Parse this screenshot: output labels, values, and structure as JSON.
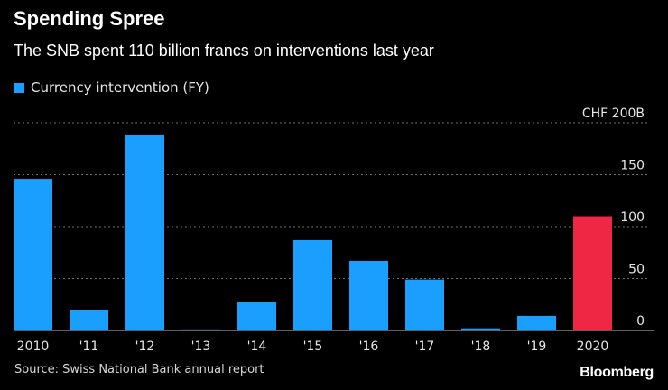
{
  "header": {
    "title": "Spending Spree",
    "subtitle": "The SNB spent 110 billion francs on interventions last year"
  },
  "legend": {
    "label": "Currency intervention (FY)",
    "color": "#1a9fff"
  },
  "footer": {
    "source": "Source: Swiss National Bank annual report",
    "brand": "Bloomberg"
  },
  "colors": {
    "bar": "#1a9fff",
    "highlight": "#ef2745",
    "grid": "#6e6e6e",
    "axis": "#bfbfbf",
    "text": "#e6e6e6"
  },
  "chart_data": {
    "type": "bar",
    "categories": [
      "2010",
      "'11",
      "'12",
      "'13",
      "'14",
      "'15",
      "'16",
      "'17",
      "'18",
      "'19",
      "2020"
    ],
    "values": [
      146,
      20,
      188,
      1,
      27,
      87,
      67,
      49,
      2,
      14,
      110
    ],
    "highlight_index": 10,
    "ylim": [
      0,
      200
    ],
    "yticks": [
      0,
      50,
      100,
      150,
      200
    ],
    "ytick_labels": [
      "0",
      "50",
      "100",
      "150",
      "CHF 200B"
    ],
    "grid": true,
    "y_axis_side": "right"
  }
}
